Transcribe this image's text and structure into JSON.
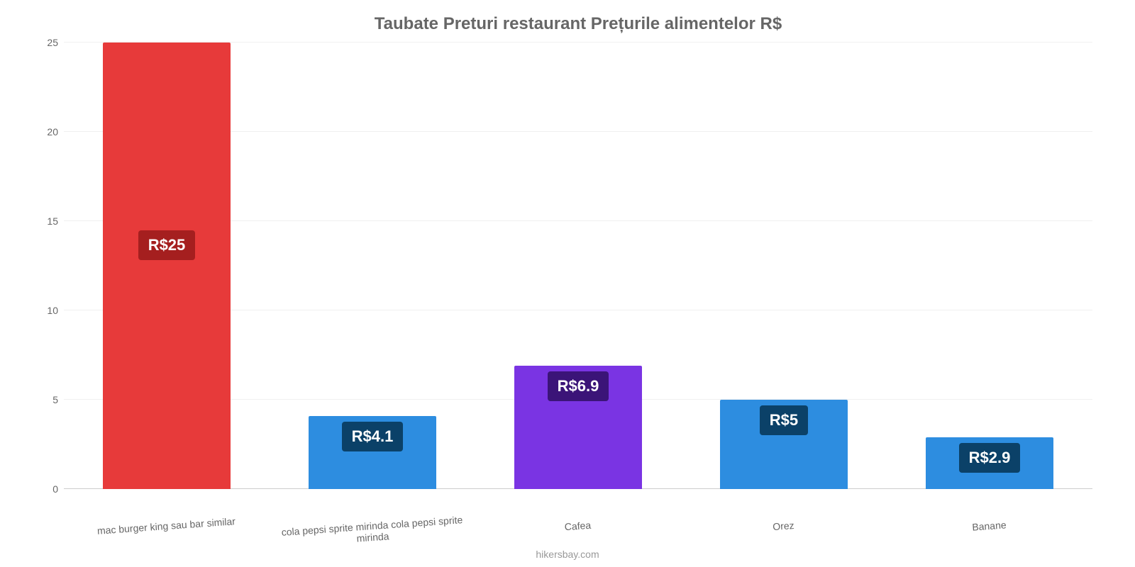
{
  "chart": {
    "type": "bar",
    "title": "Taubate Preturi restaurant Prețurile alimentelor R$",
    "title_fontsize": 24,
    "title_color": "#666666",
    "background_color": "#ffffff",
    "grid_color": "#f0f0f0",
    "axis_color": "#cccccc",
    "tick_label_color": "#666666",
    "tick_fontsize": 14,
    "ylim": [
      0,
      25
    ],
    "ytick_step": 5,
    "yticks": [
      0,
      5,
      10,
      15,
      20,
      25
    ],
    "bar_width_pct": 62,
    "categories": [
      "mac burger king sau bar similar",
      "cola pepsi sprite mirinda cola pepsi sprite mirinda",
      "Cafea",
      "Orez",
      "Banane"
    ],
    "values": [
      25,
      4.1,
      6.9,
      5,
      2.9
    ],
    "value_labels": [
      "R$25",
      "R$4.1",
      "R$6.9",
      "R$5",
      "R$2.9"
    ],
    "bar_colors": [
      "#e73a3a",
      "#2d8de0",
      "#7a34e3",
      "#2d8de0",
      "#2d8de0"
    ],
    "value_label_bg": [
      "#a51f1f",
      "#0b4168",
      "#3b1478",
      "#0b4168",
      "#0b4168"
    ],
    "value_label_color": "#ffffff",
    "value_label_fontsize": 22,
    "credit": "hikersbay.com",
    "credit_color": "#999999"
  }
}
